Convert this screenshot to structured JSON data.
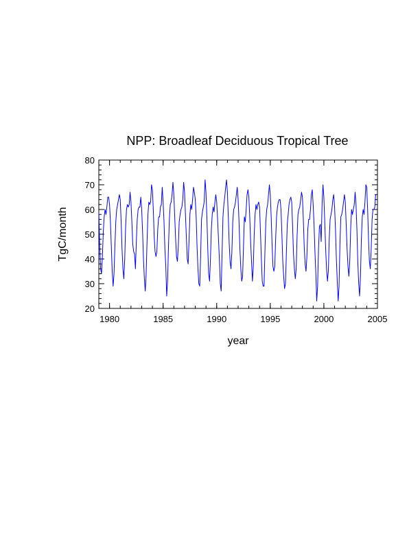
{
  "chart_data": {
    "type": "line",
    "title": "NPP: Broadleaf Deciduous Tropical Tree",
    "xlabel": "year",
    "ylabel": "TgC/month",
    "xlim": [
      1979,
      2005
    ],
    "ylim": [
      20,
      80
    ],
    "x_ticks": [
      1980,
      1985,
      1990,
      1995,
      2000,
      2005
    ],
    "y_ticks": [
      20,
      30,
      40,
      50,
      60,
      70,
      80
    ],
    "x_minor_step": 1,
    "y_minor_step": 2,
    "grid": false,
    "legend": "none",
    "color": "#0000ff",
    "series": [
      {
        "x_start": 1979.0,
        "x_step_months": 1,
        "values": [
          59,
          45,
          36,
          34,
          41,
          51,
          57,
          60,
          58,
          61,
          65,
          65,
          62,
          55,
          45,
          35,
          29,
          34,
          45,
          55,
          60,
          62,
          64,
          66,
          64,
          55,
          44,
          36,
          32,
          40,
          53,
          60,
          62,
          61,
          62,
          67,
          63,
          55,
          46,
          43,
          42,
          36,
          47,
          56,
          60,
          61,
          61,
          65,
          60,
          51,
          40,
          32,
          27,
          34,
          47,
          58,
          63,
          62,
          63,
          70,
          68,
          60,
          49,
          43,
          41,
          43,
          52,
          57,
          57,
          61,
          62,
          69,
          63,
          55,
          44,
          37,
          25,
          31,
          45,
          56,
          62,
          63,
          66,
          71,
          66,
          57,
          48,
          41,
          39,
          45,
          55,
          58,
          60,
          61,
          64,
          71,
          67,
          58,
          49,
          40,
          38,
          47,
          58,
          62,
          60,
          64,
          69,
          67,
          64,
          57,
          45,
          36,
          30,
          29,
          41,
          56,
          59,
          61,
          63,
          72,
          67,
          57,
          44,
          34,
          31,
          40,
          52,
          58,
          61,
          59,
          63,
          66,
          63,
          56,
          48,
          40,
          30,
          27,
          42,
          57,
          62,
          65,
          69,
          72,
          67,
          57,
          46,
          39,
          36,
          43,
          55,
          60,
          61,
          63,
          66,
          69,
          64,
          55,
          44,
          36,
          31,
          33,
          45,
          57,
          55,
          60,
          66,
          68,
          65,
          57,
          47,
          39,
          31,
          37,
          50,
          58,
          62,
          60,
          62,
          63,
          61,
          51,
          40,
          31,
          29,
          29,
          43,
          55,
          60,
          62,
          66,
          70,
          66,
          57,
          46,
          37,
          35,
          37,
          48,
          57,
          61,
          63,
          64,
          64,
          60,
          50,
          39,
          33,
          28,
          30,
          42,
          54,
          58,
          62,
          64,
          65,
          63,
          53,
          42,
          36,
          32,
          36,
          49,
          58,
          60,
          61,
          64,
          67,
          65,
          56,
          45,
          38,
          35,
          41,
          52,
          56,
          56,
          60,
          66,
          68,
          62,
          54,
          43,
          34,
          23,
          29,
          44,
          53,
          54,
          47,
          62,
          70,
          65,
          55,
          44,
          36,
          31,
          35,
          48,
          56,
          58,
          60,
          64,
          66,
          61,
          52,
          40,
          31,
          23,
          29,
          46,
          57,
          58,
          60,
          63,
          66,
          63,
          54,
          44,
          37,
          33,
          39,
          52,
          60,
          58,
          60,
          62,
          67,
          62,
          52,
          39,
          30,
          25,
          33,
          48,
          57,
          60,
          58,
          63,
          70,
          69,
          60,
          48,
          39,
          36,
          44,
          56,
          60,
          60,
          61,
          66,
          66
        ]
      }
    ]
  }
}
